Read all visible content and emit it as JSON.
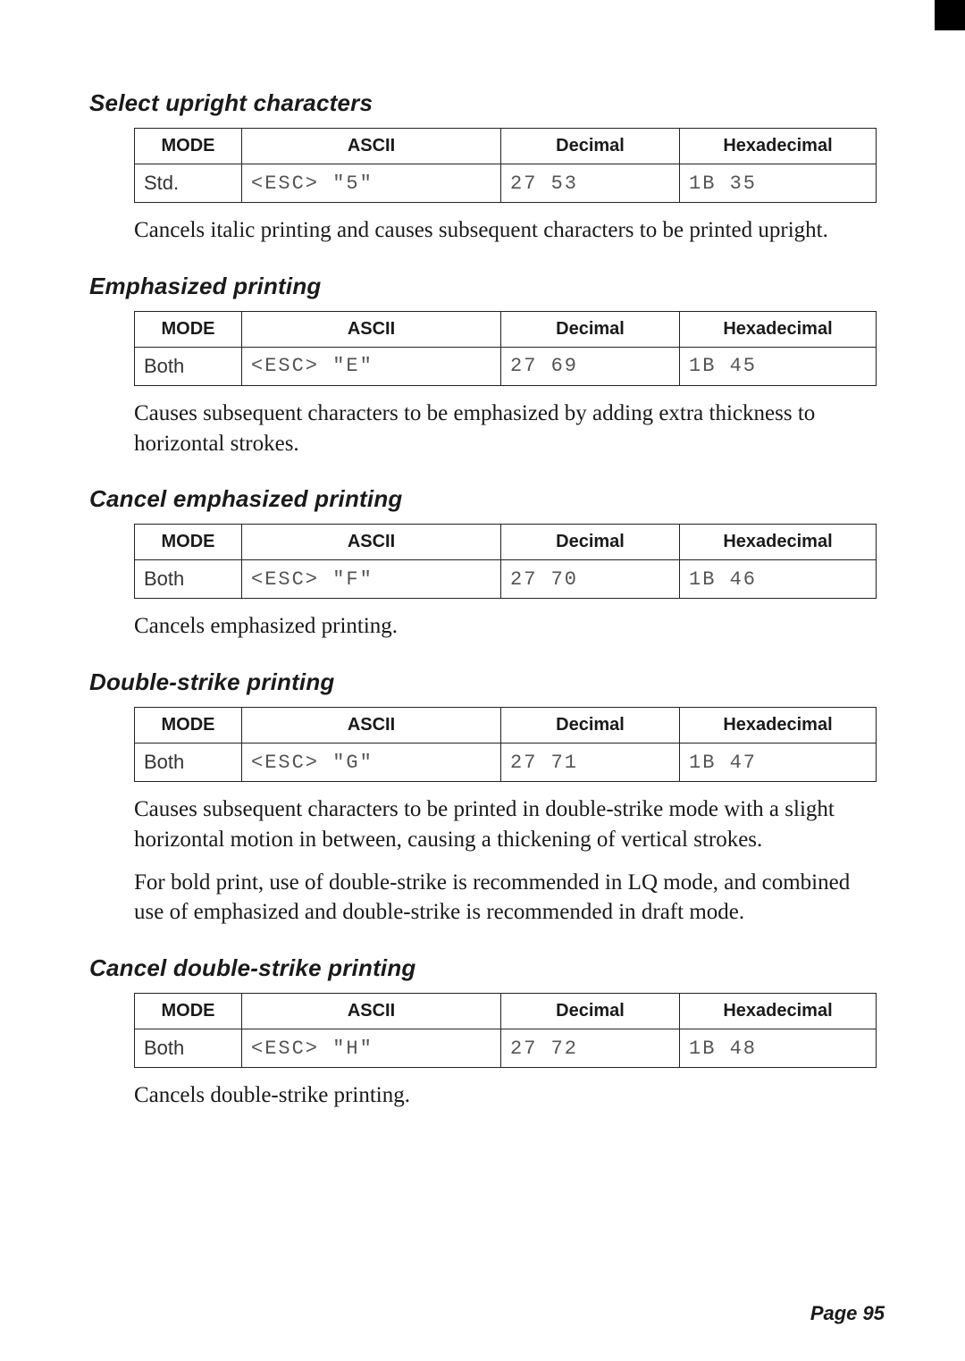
{
  "page_number": "Page 95",
  "columns": {
    "mode": "MODE",
    "ascii": "ASCII",
    "decimal": "Decimal",
    "hex": "Hexadecimal"
  },
  "sections": [
    {
      "heading": "Select upright characters",
      "row": {
        "mode": "Std.",
        "ascii": "<ESC> \"5\"",
        "decimal": "27 53",
        "hex": "1B 35"
      },
      "desc": [
        "Cancels italic printing and causes subsequent characters to be printed upright."
      ]
    },
    {
      "heading": "Emphasized printing",
      "row": {
        "mode": "Both",
        "ascii": "<ESC> \"E\"",
        "decimal": "27 69",
        "hex": "1B 45"
      },
      "desc": [
        "Causes subsequent characters to be emphasized by adding extra thickness to horizontal strokes."
      ]
    },
    {
      "heading": "Cancel emphasized printing",
      "row": {
        "mode": "Both",
        "ascii": "<ESC> \"F\"",
        "decimal": "27 70",
        "hex": "1B 46"
      },
      "desc": [
        "Cancels emphasized printing."
      ]
    },
    {
      "heading": "Double-strike printing",
      "row": {
        "mode": "Both",
        "ascii": "<ESC> \"G\"",
        "decimal": "27 71",
        "hex": "1B 47"
      },
      "desc": [
        "Causes subsequent characters to be printed in double-strike mode with a slight horizontal motion in between, causing a thickening of vertical strokes.",
        "For bold print, use of double-strike is recommended in LQ mode, and combined use of emphasized and double-strike is recommended in draft mode."
      ]
    },
    {
      "heading": "Cancel double-strike printing",
      "row": {
        "mode": "Both",
        "ascii": "<ESC> \"H\"",
        "decimal": "27 72",
        "hex": "1B 48"
      },
      "desc": [
        "Cancels double-strike printing."
      ]
    }
  ]
}
